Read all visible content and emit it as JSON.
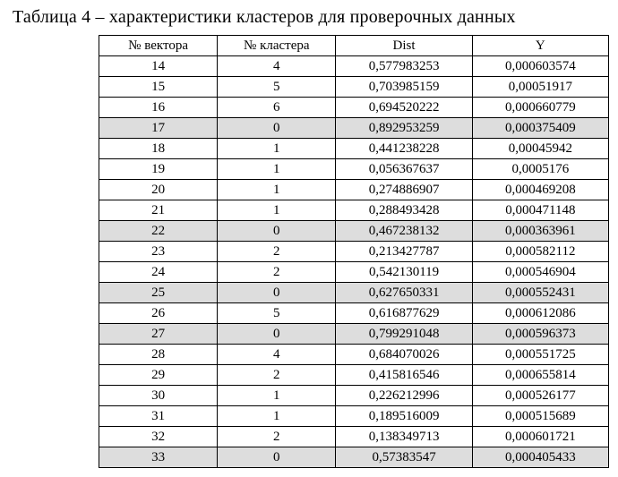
{
  "caption": "Таблица 4 – характеристики кластеров для проверочных данных",
  "columns": {
    "vec": "№ вектора",
    "clu": "№ кластера",
    "dist": "Dist",
    "y": "Y"
  },
  "highlight_color": "#dddddd",
  "rows": [
    {
      "vec": "14",
      "clu": "4",
      "dist": "0,577983253",
      "y": "0,000603574",
      "hl": false
    },
    {
      "vec": "15",
      "clu": "5",
      "dist": "0,703985159",
      "y": "0,00051917",
      "hl": false
    },
    {
      "vec": "16",
      "clu": "6",
      "dist": "0,694520222",
      "y": "0,000660779",
      "hl": false
    },
    {
      "vec": "17",
      "clu": "0",
      "dist": "0,892953259",
      "y": "0,000375409",
      "hl": true
    },
    {
      "vec": "18",
      "clu": "1",
      "dist": "0,441238228",
      "y": "0,00045942",
      "hl": false
    },
    {
      "vec": "19",
      "clu": "1",
      "dist": "0,056367637",
      "y": "0,0005176",
      "hl": false
    },
    {
      "vec": "20",
      "clu": "1",
      "dist": "0,274886907",
      "y": "0,000469208",
      "hl": false
    },
    {
      "vec": "21",
      "clu": "1",
      "dist": "0,288493428",
      "y": "0,000471148",
      "hl": false
    },
    {
      "vec": "22",
      "clu": "0",
      "dist": "0,467238132",
      "y": "0,000363961",
      "hl": true
    },
    {
      "vec": "23",
      "clu": "2",
      "dist": "0,213427787",
      "y": "0,000582112",
      "hl": false
    },
    {
      "vec": "24",
      "clu": "2",
      "dist": "0,542130119",
      "y": "0,000546904",
      "hl": false
    },
    {
      "vec": "25",
      "clu": "0",
      "dist": "0,627650331",
      "y": "0,000552431",
      "hl": true
    },
    {
      "vec": "26",
      "clu": "5",
      "dist": "0,616877629",
      "y": "0,000612086",
      "hl": false
    },
    {
      "vec": "27",
      "clu": "0",
      "dist": "0,799291048",
      "y": "0,000596373",
      "hl": true
    },
    {
      "vec": "28",
      "clu": "4",
      "dist": "0,684070026",
      "y": "0,000551725",
      "hl": false
    },
    {
      "vec": "29",
      "clu": "2",
      "dist": "0,415816546",
      "y": "0,000655814",
      "hl": false
    },
    {
      "vec": "30",
      "clu": "1",
      "dist": "0,226212996",
      "y": "0,000526177",
      "hl": false
    },
    {
      "vec": "31",
      "clu": "1",
      "dist": "0,189516009",
      "y": "0,000515689",
      "hl": false
    },
    {
      "vec": "32",
      "clu": "2",
      "dist": "0,138349713",
      "y": "0,000601721",
      "hl": false
    },
    {
      "vec": "33",
      "clu": "0",
      "dist": "0,57383547",
      "y": "0,000405433",
      "hl": true
    }
  ]
}
